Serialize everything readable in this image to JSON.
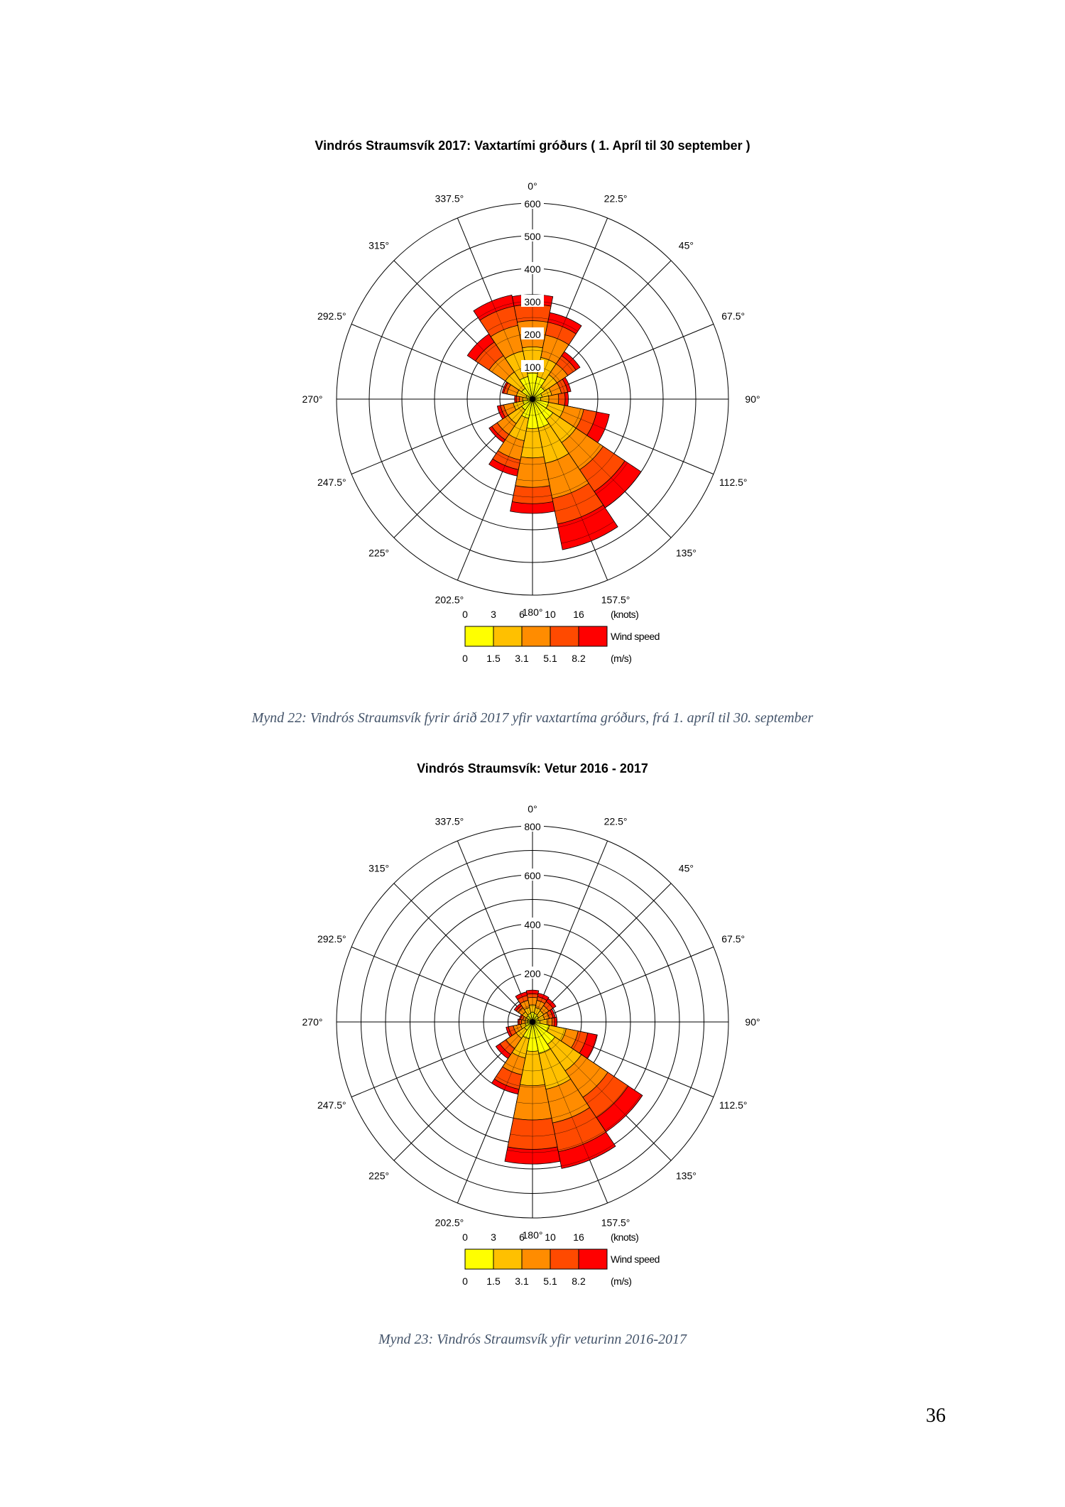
{
  "page_number": "36",
  "captions": [
    "Mynd 22: Vindrós Straumsvík fyrir árið 2017 yfir vaxtartíma gróðurs, frá 1. apríl til 30. september",
    "Mynd 23: Vindrós Straumsvík yfir veturinn 2016-2017"
  ],
  "speed_colors": [
    "#ffff00",
    "#ffc000",
    "#ff8c00",
    "#ff4a00",
    "#ff0000"
  ],
  "chart_data": [
    {
      "type": "windrose",
      "title": "Vindrós Straumsvík 2017: Vaxtartími gróðurs ( 1. Apríl til 30 september )",
      "r_max": 600,
      "r_ticks": [
        100,
        200,
        300,
        400,
        500,
        600
      ],
      "r_ticks_labeled": [
        100,
        200,
        300,
        400,
        500,
        600
      ],
      "direction_labels": [
        "0°",
        "22.5°",
        "45°",
        "67.5°",
        "90°",
        "112.5°",
        "135°",
        "157.5°",
        "180°",
        "202.5°",
        "225°",
        "247.5°",
        "270°",
        "292.5°",
        "315°",
        "337.5°"
      ],
      "legend": {
        "knots_labels": [
          "0",
          "3",
          "6",
          "10",
          "16"
        ],
        "knots_unit": "(knots)",
        "ms_labels": [
          "0",
          "1.5",
          "3.1",
          "5.1",
          "8.2"
        ],
        "ms_unit": "(m/s)",
        "title": "Wind speed"
      },
      "categories": [
        "N",
        "NNE",
        "NE",
        "ENE",
        "E",
        "ESE",
        "SE",
        "SSE",
        "S",
        "SSW",
        "SW",
        "WSW",
        "W",
        "WNW",
        "NW",
        "NNW"
      ],
      "series": [
        {
          "name": "0",
          "values": [
            80,
            70,
            45,
            30,
            25,
            50,
            75,
            90,
            90,
            60,
            40,
            30,
            15,
            20,
            40,
            70
          ]
        },
        {
          "name": "1.5",
          "values": [
            160,
            130,
            90,
            60,
            50,
            100,
            160,
            200,
            180,
            130,
            90,
            60,
            30,
            50,
            100,
            150
          ]
        },
        {
          "name": "3.1",
          "values": [
            240,
            200,
            130,
            90,
            80,
            160,
            260,
            310,
            270,
            190,
            130,
            90,
            40,
            80,
            160,
            230
          ]
        },
        {
          "name": "5.1",
          "values": [
            290,
            240,
            160,
            110,
            100,
            200,
            340,
            390,
            320,
            220,
            150,
            100,
            50,
            90,
            210,
            290
          ]
        },
        {
          "name": "8.2",
          "values": [
            320,
            270,
            175,
            120,
            110,
            240,
            400,
            470,
            350,
            240,
            160,
            110,
            55,
            95,
            240,
            325
          ]
        }
      ]
    },
    {
      "type": "windrose",
      "title": "Vindrós Straumsvík: Vetur 2016 - 2017",
      "r_max": 800,
      "r_ticks": [
        100,
        200,
        300,
        400,
        500,
        600,
        700,
        800
      ],
      "r_ticks_labeled": [
        200,
        400,
        600,
        800
      ],
      "direction_labels": [
        "0°",
        "22.5°",
        "45°",
        "67.5°",
        "90°",
        "112.5°",
        "135°",
        "157.5°",
        "180°",
        "202.5°",
        "225°",
        "247.5°",
        "270°",
        "292.5°",
        "315°",
        "337.5°"
      ],
      "legend": {
        "knots_labels": [
          "0",
          "3",
          "6",
          "10",
          "16"
        ],
        "knots_unit": "(knots)",
        "ms_labels": [
          "0",
          "1.5",
          "3.1",
          "5.1",
          "8.2"
        ],
        "ms_unit": "(m/s)",
        "title": "Wind speed"
      },
      "categories": [
        "N",
        "NNE",
        "NE",
        "ENE",
        "E",
        "ESE",
        "SE",
        "SSE",
        "S",
        "SSW",
        "SW",
        "WSW",
        "W",
        "WNW",
        "NW",
        "NNW"
      ],
      "series": [
        {
          "name": "0",
          "values": [
            40,
            35,
            30,
            25,
            30,
            70,
            110,
            130,
            120,
            70,
            40,
            30,
            20,
            20,
            30,
            35
          ]
        },
        {
          "name": "1.5",
          "values": [
            70,
            60,
            55,
            50,
            60,
            140,
            240,
            280,
            260,
            150,
            80,
            50,
            30,
            30,
            50,
            60
          ]
        },
        {
          "name": "3.1",
          "values": [
            100,
            90,
            80,
            70,
            80,
            190,
            370,
            420,
            400,
            220,
            130,
            80,
            45,
            40,
            70,
            90
          ]
        },
        {
          "name": "5.1",
          "values": [
            115,
            105,
            100,
            85,
            90,
            230,
            470,
            540,
            520,
            280,
            160,
            100,
            55,
            50,
            80,
            110
          ]
        },
        {
          "name": "8.2",
          "values": [
            130,
            120,
            115,
            95,
            100,
            270,
            540,
            610,
            580,
            300,
            180,
            110,
            60,
            55,
            90,
            125
          ]
        }
      ]
    }
  ]
}
